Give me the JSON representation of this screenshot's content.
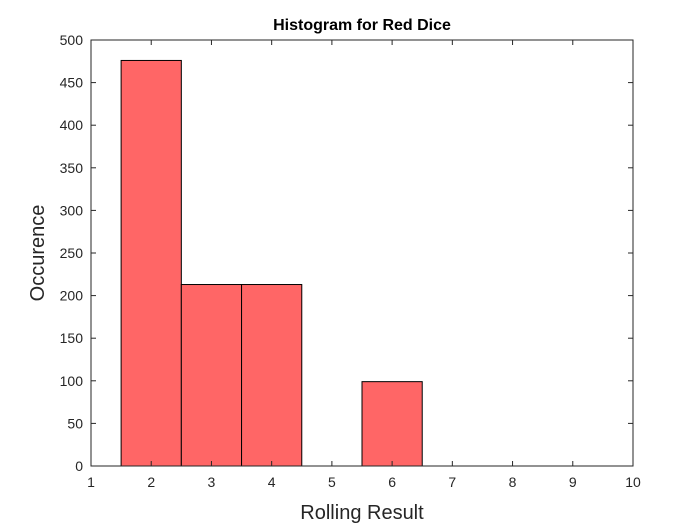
{
  "chart_data": {
    "type": "bar",
    "subtype": "histogram",
    "title": "Histogram for Red Dice",
    "xlabel": "Rolling Result",
    "ylabel": "Occurence",
    "xlim": [
      1,
      10
    ],
    "ylim": [
      0,
      500
    ],
    "xticks": [
      1,
      2,
      3,
      4,
      5,
      6,
      7,
      8,
      9,
      10
    ],
    "yticks": [
      0,
      50,
      100,
      150,
      200,
      250,
      300,
      350,
      400,
      450,
      500
    ],
    "bins": [
      {
        "center": 2,
        "value": 476
      },
      {
        "center": 3,
        "value": 213
      },
      {
        "center": 4,
        "value": 213
      },
      {
        "center": 5,
        "value": 0
      },
      {
        "center": 6,
        "value": 99
      }
    ],
    "bar_width": 1,
    "grid": false,
    "bar_color": "#ff6666",
    "edge_color": "#000000"
  }
}
